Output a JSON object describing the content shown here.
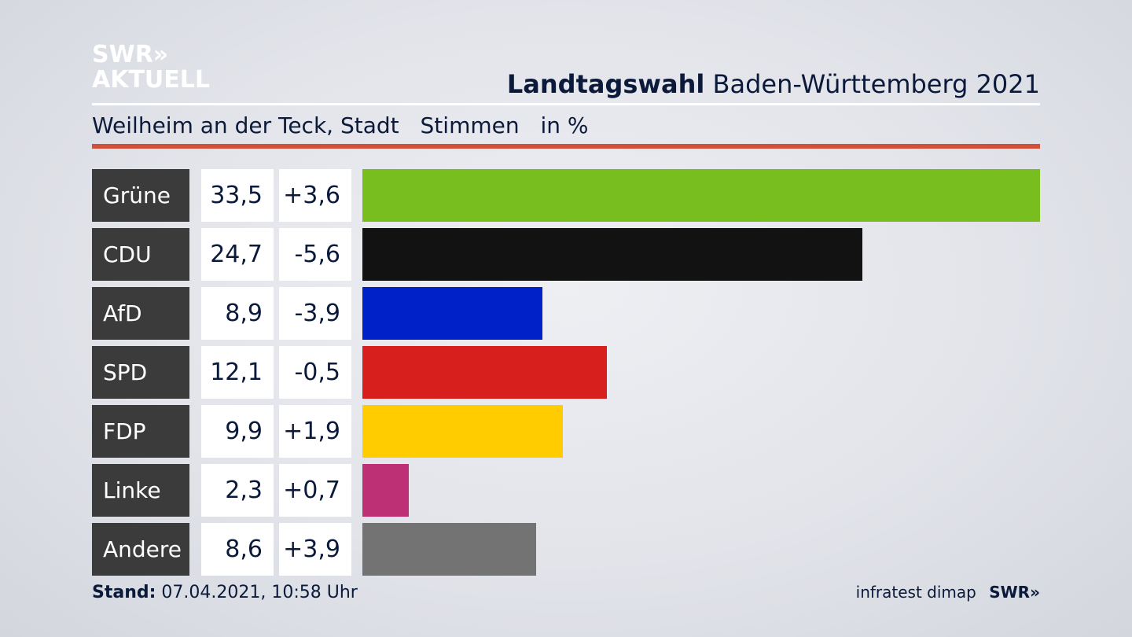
{
  "logo": {
    "line1": "SWR»",
    "line2": "AKTUELL"
  },
  "header": {
    "title_bold": "Landtagswahl",
    "title_rest": "Baden-Württemberg 2021",
    "subtitle_place": "Weilheim an der Teck, Stadt",
    "subtitle_measure": "Stimmen",
    "subtitle_unit": "in %"
  },
  "chart_data": {
    "type": "bar",
    "orientation": "horizontal",
    "categories": [
      "Grüne",
      "CDU",
      "AfD",
      "SPD",
      "FDP",
      "Linke",
      "Andere"
    ],
    "values": [
      33.5,
      24.7,
      8.9,
      12.1,
      9.9,
      2.3,
      8.6
    ],
    "value_labels": [
      "33,5",
      "24,7",
      "8,9",
      "12,1",
      "9,9",
      "2,3",
      "8,6"
    ],
    "changes": [
      "+3,6",
      "-5,6",
      "-3,9",
      "-0,5",
      "+1,9",
      "+0,7",
      "+3,9"
    ],
    "colors": [
      "#78be1e",
      "#121212",
      "#0021c8",
      "#d71f1d",
      "#ffcc00",
      "#be3075",
      "#737373"
    ],
    "xlim": [
      0,
      33.5
    ]
  },
  "footer": {
    "stand_label": "Stand:",
    "stand_value": "07.04.2021, 10:58 Uhr",
    "source": "infratest dimap",
    "brand": "SWR»"
  }
}
